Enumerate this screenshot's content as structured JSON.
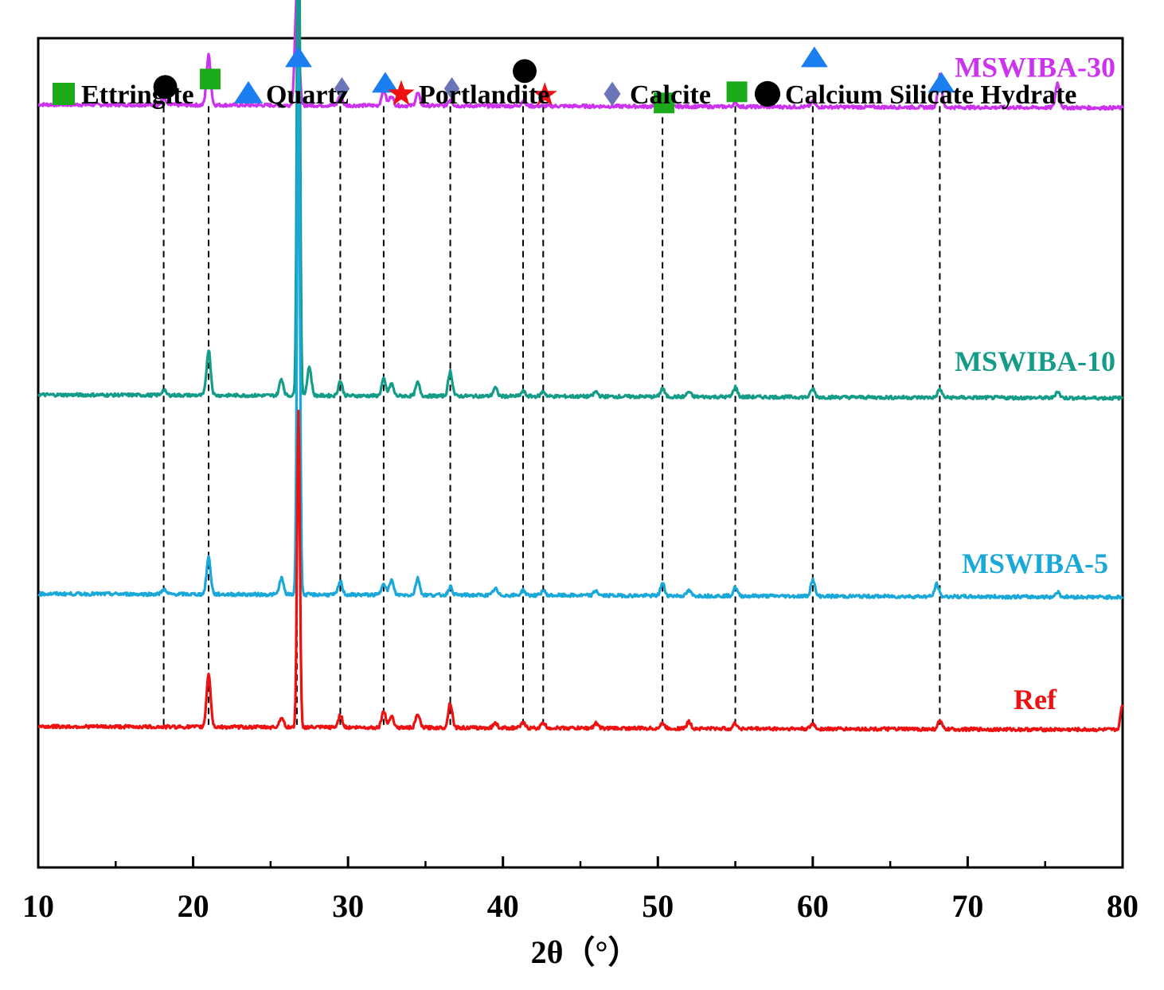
{
  "chart_data": {
    "type": "line",
    "title": "",
    "xlabel": "2θ（°）",
    "ylabel": "",
    "xlim": [
      10,
      80
    ],
    "x_ticks": [
      10,
      20,
      30,
      40,
      50,
      60,
      70,
      80
    ],
    "x_tick_labels": [
      "10",
      "20",
      "30",
      "40",
      "50",
      "60",
      "70",
      "80"
    ],
    "y_ticks_shown": false,
    "grid": false,
    "legend_position": "top",
    "legend": [
      {
        "label": "Ettringite",
        "marker": "square",
        "color": "#1aaa1a"
      },
      {
        "label": "Quartz",
        "marker": "triangle",
        "color": "#1a7ef0"
      },
      {
        "label": "Portlandite",
        "marker": "star",
        "color": "#ee1111"
      },
      {
        "label": "Calcite",
        "marker": "diamond",
        "color": "#6a75b8"
      },
      {
        "label": "Calcium Silicate Hydrate",
        "marker": "circle",
        "color": "#000000"
      }
    ],
    "series": [
      {
        "name": "MSWIBA-30",
        "color": "#cc33ee",
        "offset": 0.92,
        "peaks": [
          [
            18.1,
            0.008
          ],
          [
            21.0,
            0.06
          ],
          [
            26.7,
            0.135
          ],
          [
            29.5,
            0.012
          ],
          [
            32.3,
            0.02
          ],
          [
            32.8,
            0.012
          ],
          [
            34.5,
            0.015
          ],
          [
            36.6,
            0.008
          ],
          [
            41.3,
            0.006
          ],
          [
            50.3,
            0.005
          ],
          [
            55.0,
            0.005
          ],
          [
            60.0,
            0.006
          ],
          [
            68.2,
            0.04
          ],
          [
            75.8,
            0.03
          ]
        ]
      },
      {
        "name": "MSWIBA-10",
        "color": "#149c88",
        "offset": 0.57,
        "peaks": [
          [
            18.1,
            0.006
          ],
          [
            21.0,
            0.055
          ],
          [
            25.7,
            0.02
          ],
          [
            26.8,
            0.73
          ],
          [
            27.5,
            0.035
          ],
          [
            29.5,
            0.018
          ],
          [
            32.3,
            0.02
          ],
          [
            32.8,
            0.015
          ],
          [
            34.5,
            0.016
          ],
          [
            36.6,
            0.03
          ],
          [
            39.5,
            0.01
          ],
          [
            41.3,
            0.006
          ],
          [
            42.6,
            0.006
          ],
          [
            46.0,
            0.006
          ],
          [
            50.3,
            0.01
          ],
          [
            52.0,
            0.006
          ],
          [
            55.0,
            0.012
          ],
          [
            60.0,
            0.01
          ],
          [
            68.2,
            0.01
          ],
          [
            75.8,
            0.008
          ]
        ]
      },
      {
        "name": "MSWIBA-5",
        "color": "#1aa8d8",
        "offset": 0.33,
        "peaks": [
          [
            18.1,
            0.006
          ],
          [
            21.0,
            0.045
          ],
          [
            25.7,
            0.02
          ],
          [
            26.8,
            0.65
          ],
          [
            29.5,
            0.016
          ],
          [
            32.3,
            0.015
          ],
          [
            32.8,
            0.018
          ],
          [
            34.5,
            0.02
          ],
          [
            36.6,
            0.01
          ],
          [
            39.5,
            0.008
          ],
          [
            41.3,
            0.006
          ],
          [
            42.6,
            0.006
          ],
          [
            46.0,
            0.006
          ],
          [
            50.3,
            0.015
          ],
          [
            52.0,
            0.006
          ],
          [
            55.0,
            0.01
          ],
          [
            60.0,
            0.02
          ],
          [
            68.0,
            0.015
          ],
          [
            75.8,
            0.006
          ]
        ]
      },
      {
        "name": "Ref",
        "color": "#ee1111",
        "offset": 0.17,
        "peaks": [
          [
            21.0,
            0.065
          ],
          [
            25.7,
            0.012
          ],
          [
            26.8,
            0.38
          ],
          [
            29.5,
            0.015
          ],
          [
            32.3,
            0.02
          ],
          [
            32.8,
            0.015
          ],
          [
            34.5,
            0.016
          ],
          [
            36.6,
            0.03
          ],
          [
            39.5,
            0.006
          ],
          [
            41.3,
            0.006
          ],
          [
            42.6,
            0.006
          ],
          [
            46.0,
            0.006
          ],
          [
            50.3,
            0.006
          ],
          [
            52.0,
            0.008
          ],
          [
            55.0,
            0.006
          ],
          [
            60.0,
            0.006
          ],
          [
            68.2,
            0.01
          ],
          [
            80.0,
            0.03
          ]
        ]
      }
    ],
    "phase_markers": [
      {
        "phase": "Calcium Silicate Hydrate",
        "x": 18.1
      },
      {
        "phase": "Ettringite",
        "x": 21.0
      },
      {
        "phase": "Quartz",
        "x": 26.7
      },
      {
        "phase": "Calcite",
        "x": 29.5
      },
      {
        "phase": "Quartz",
        "x": 32.3
      },
      {
        "phase": "Calcite",
        "x": 36.6
      },
      {
        "phase": "Calcium Silicate Hydrate",
        "x": 41.3
      },
      {
        "phase": "Portlandite",
        "x": 42.6
      },
      {
        "phase": "Ettringite",
        "x": 50.3
      },
      {
        "phase": "Ettringite",
        "x": 55.0
      },
      {
        "phase": "Quartz",
        "x": 60.0
      },
      {
        "phase": "Quartz",
        "x": 68.2
      }
    ]
  }
}
